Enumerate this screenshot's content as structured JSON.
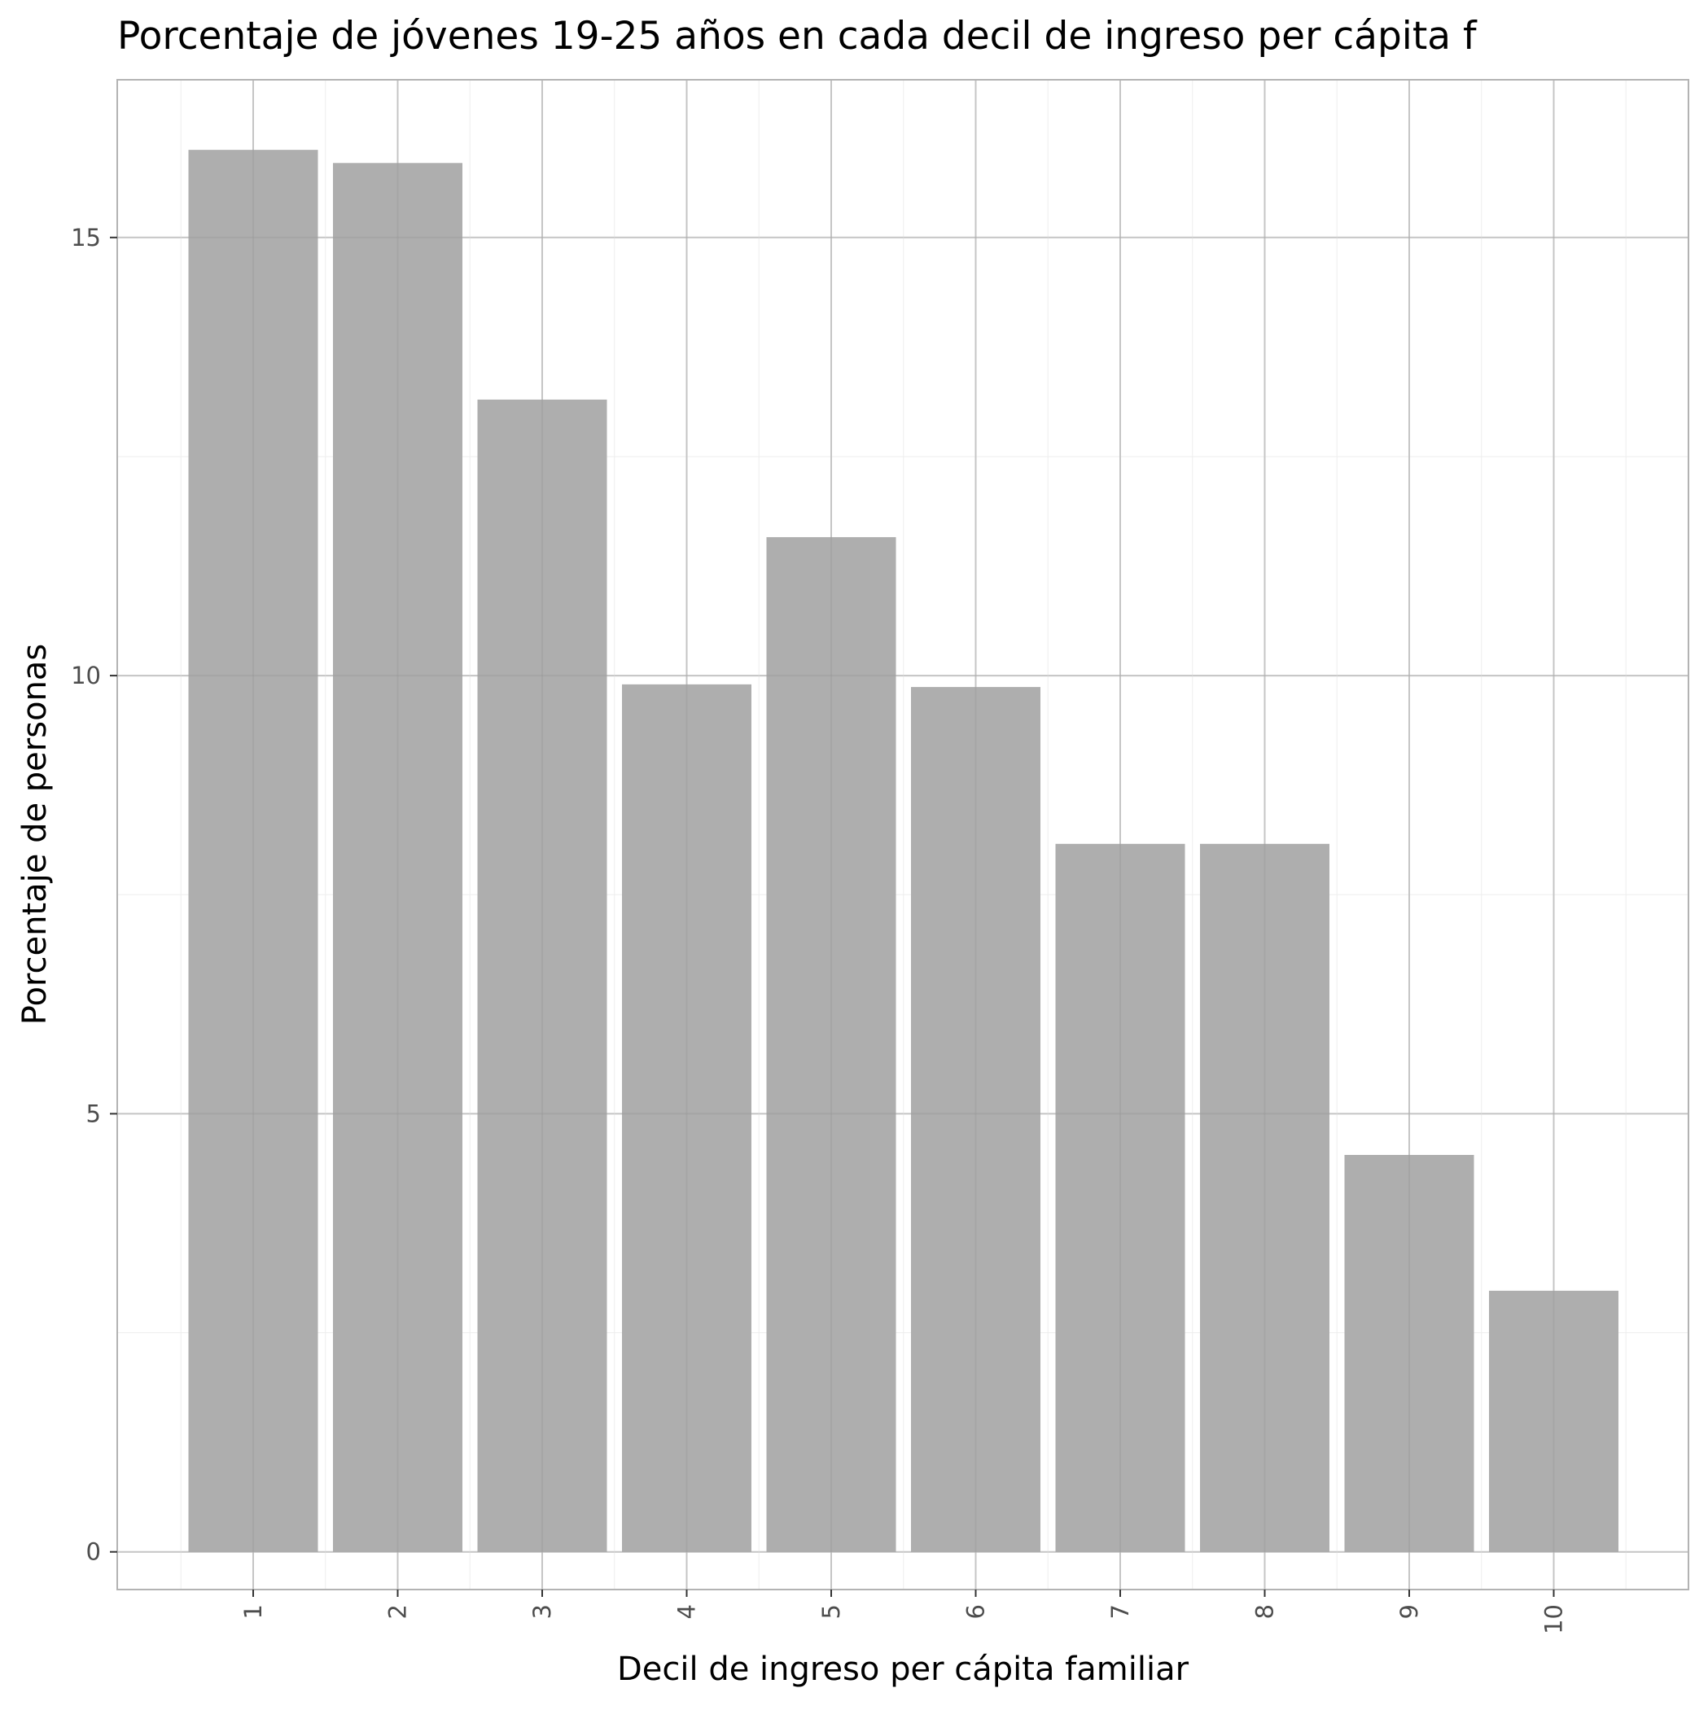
{
  "chart_data": {
    "type": "bar",
    "title": "Porcentaje de jóvenes 19-25 años en cada decil de ingreso per cápita f",
    "xlabel": "Decil de ingreso per cápita familiar",
    "ylabel": "Porcentaje de personas",
    "categories": [
      "1",
      "2",
      "3",
      "4",
      "5",
      "6",
      "7",
      "8",
      "9",
      "10"
    ],
    "values": [
      16.0,
      15.85,
      13.15,
      9.9,
      11.58,
      9.87,
      8.08,
      8.08,
      4.53,
      2.98
    ],
    "y_ticks": [
      "0",
      "5",
      "10",
      "15"
    ],
    "ylim": [
      -0.43,
      16.8
    ],
    "grid": true,
    "bar_color": "#aaaaaa",
    "legend": "none"
  }
}
